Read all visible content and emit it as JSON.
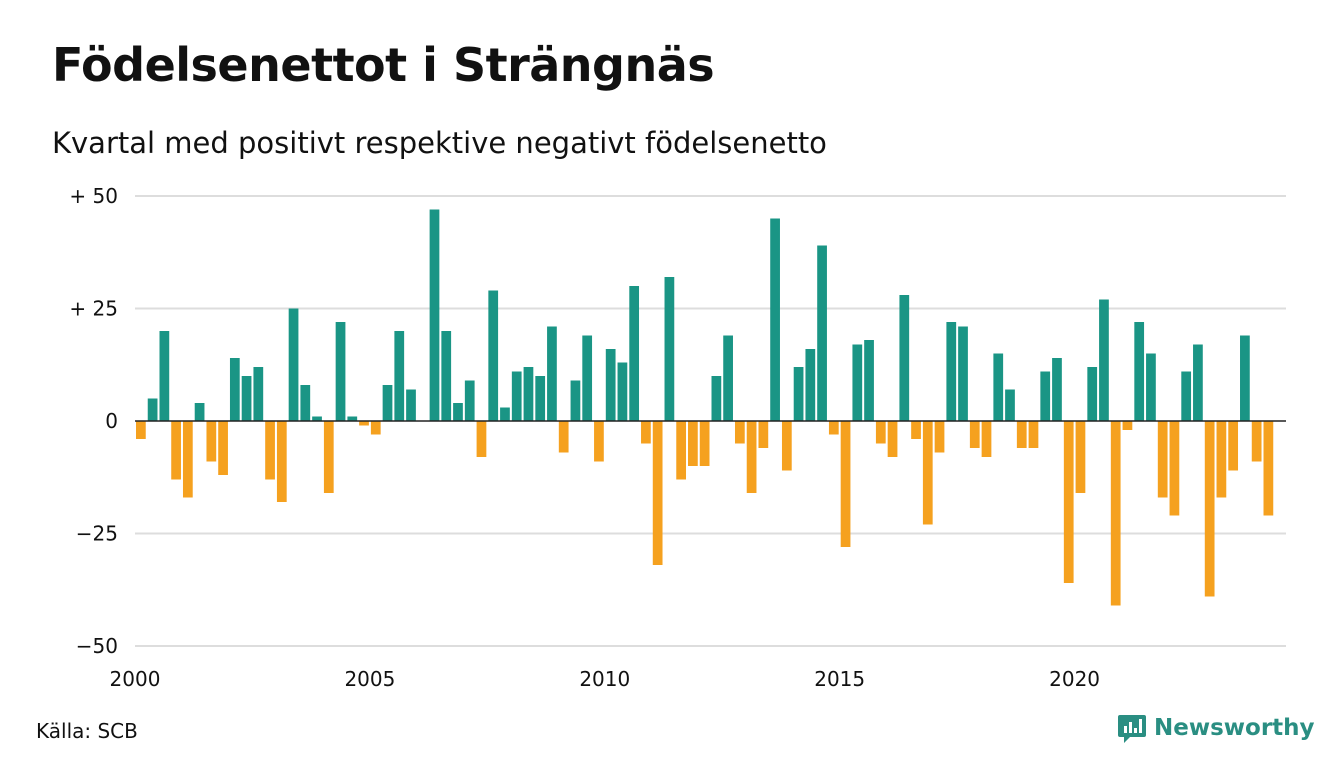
{
  "title": "Födelsenettot i Strängnäs",
  "subtitle": "Kvartal med positivt respektive negativt födelsenetto",
  "source": "Källa: SCB",
  "brand": {
    "name": "Newsworthy",
    "icon": "newsworthy-logo-icon"
  },
  "colors": {
    "positive": "#1a9585",
    "negative": "#f5a11f",
    "grid": "#dddddd",
    "axis": "#222222",
    "brand": "#2a8e82"
  },
  "chart_data": {
    "type": "bar",
    "title": "Födelsenettot i Strängnäs",
    "subtitle": "Kvartal med positivt respektive negativt födelsenetto",
    "xlabel": "",
    "ylabel": "",
    "ylim": [
      -50,
      50
    ],
    "xlim": [
      2000,
      2024.5
    ],
    "yticks": [
      50,
      25,
      0,
      -25,
      -50
    ],
    "ytick_labels": [
      "+ 50",
      "+ 25",
      "0",
      "−25",
      "−50"
    ],
    "xticks": [
      2000,
      2005,
      2010,
      2015,
      2020
    ],
    "xtick_labels": [
      "2000",
      "2005",
      "2010",
      "2015",
      "2020"
    ],
    "grid": true,
    "legend": "none",
    "series": [
      {
        "frequency": "quarterly",
        "start": "2000 Q1",
        "values": [
          -4,
          5,
          20,
          -13,
          -17,
          4,
          -9,
          -12,
          14,
          10,
          12,
          -13,
          -18,
          25,
          8,
          1,
          -16,
          22,
          1,
          -1,
          -3,
          8,
          20,
          7,
          0,
          47,
          20,
          4,
          9,
          -8,
          29,
          3,
          11,
          12,
          10,
          21,
          -7,
          9,
          19,
          -9,
          16,
          13,
          30,
          -5,
          -32,
          32,
          -13,
          -10,
          -10,
          10,
          19,
          -5,
          -16,
          -6,
          45,
          -11,
          12,
          16,
          39,
          -3,
          -28,
          17,
          18,
          -5,
          -8,
          28,
          -4,
          -23,
          -7,
          22,
          21,
          -6,
          -8,
          15,
          7,
          -6,
          -6,
          11,
          14,
          -36,
          -16,
          12,
          27,
          -41,
          -2,
          22,
          15,
          -17,
          -21,
          11,
          17,
          -39,
          -17,
          -11,
          19,
          -9,
          -21
        ]
      }
    ]
  }
}
